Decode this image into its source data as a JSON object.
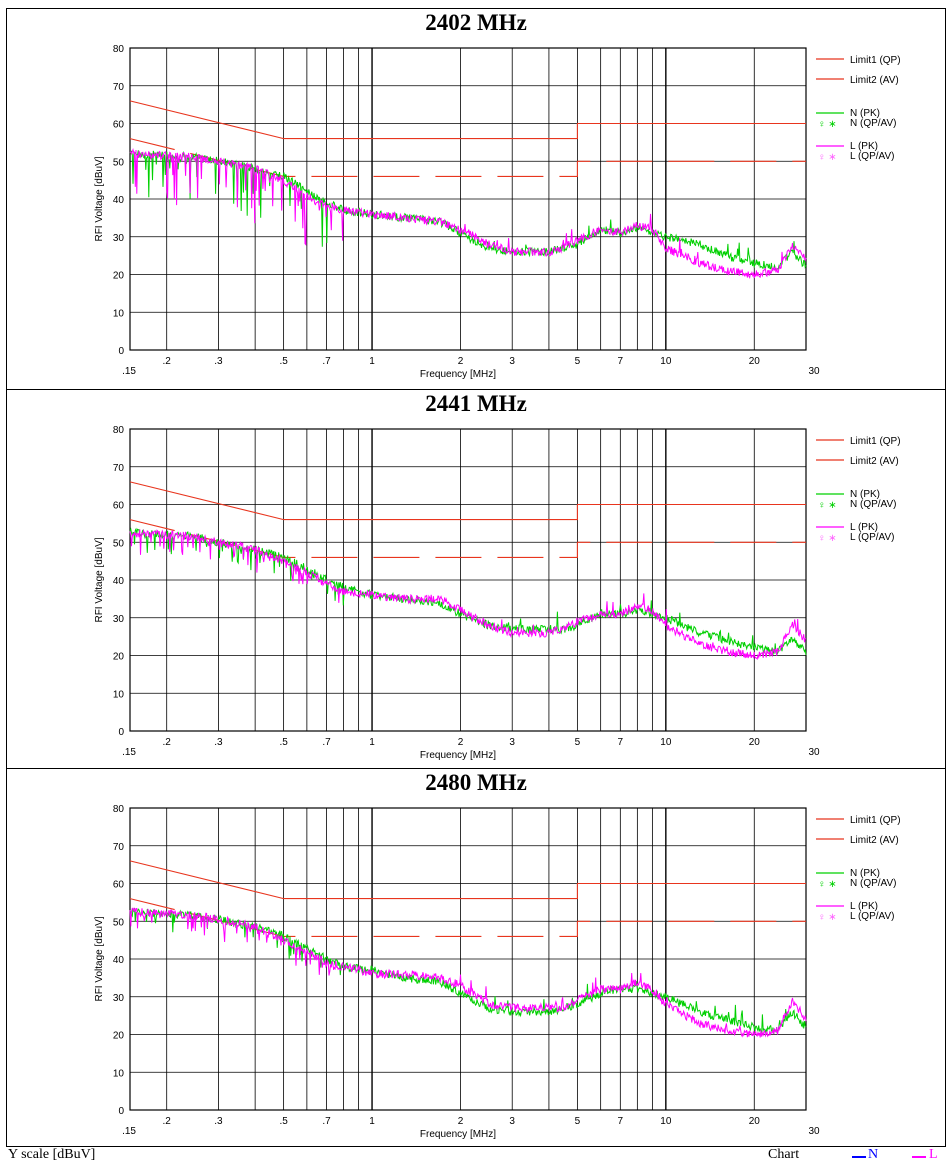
{
  "chart_data": [
    {
      "type": "line",
      "title": "2402 MHz",
      "xlabel": "Frequency [MHz]",
      "ylabel": "RFI Voltage [dBuV]",
      "x_scale": "log",
      "xlim": [
        0.15,
        30
      ],
      "ylim": [
        0,
        80
      ],
      "x_ticks": [
        ".15",
        ".2",
        ".3",
        ".5",
        ".7",
        "1",
        "2",
        "3",
        "5",
        "7",
        "10",
        "20",
        "30"
      ],
      "y_ticks": [
        "0",
        "10",
        "20",
        "30",
        "40",
        "50",
        "60",
        "70",
        "80"
      ],
      "grid": true,
      "legend_position": "right",
      "limits": [
        {
          "name": "Limit1 (QP)",
          "color": "#e8351e",
          "points": [
            [
              0.15,
              66
            ],
            [
              0.5,
              56
            ],
            [
              5,
              56
            ],
            [
              5,
              60
            ],
            [
              30,
              60
            ]
          ]
        },
        {
          "name": "Limit2 (AV)",
          "color": "#e8351e",
          "points": [
            [
              0.15,
              56
            ],
            [
              0.5,
              46
            ],
            [
              5,
              46
            ],
            [
              5,
              50
            ],
            [
              30,
              50
            ]
          ]
        }
      ],
      "series": [
        {
          "name": "N (PK)",
          "color": "#00d000",
          "x": [
            0.15,
            0.2,
            0.25,
            0.3,
            0.4,
            0.5,
            0.6,
            0.7,
            0.8,
            1.0,
            1.3,
            1.7,
            2.0,
            2.5,
            3.0,
            3.5,
            4.0,
            4.5,
            5.0,
            6.0,
            7.0,
            8.0,
            9.0,
            10.0,
            13.0,
            16.0,
            20.0,
            24.0,
            27.0,
            30.0
          ],
          "y": [
            52,
            51.5,
            51,
            50,
            48,
            46,
            42,
            39,
            37,
            36,
            35,
            34,
            31,
            27,
            26,
            26,
            26,
            27,
            28,
            32,
            31,
            32,
            31,
            30,
            28,
            25,
            23,
            22,
            26,
            22
          ]
        },
        {
          "name": "L (PK)",
          "color": "#ff00ff",
          "x": [
            0.15,
            0.2,
            0.25,
            0.3,
            0.4,
            0.5,
            0.6,
            0.7,
            0.8,
            1.0,
            1.3,
            1.7,
            2.0,
            2.5,
            3.0,
            3.5,
            4.0,
            4.5,
            5.0,
            6.0,
            7.0,
            8.0,
            9.0,
            10.0,
            13.0,
            16.0,
            20.0,
            24.0,
            27.0,
            30.0
          ],
          "y": [
            52,
            51.5,
            51,
            50,
            48,
            45,
            41,
            38,
            37,
            36,
            35,
            34,
            32,
            28,
            26,
            26,
            26,
            27,
            29,
            32,
            31,
            33,
            32,
            27,
            23,
            21,
            20,
            21,
            28,
            24
          ]
        }
      ],
      "legend": {
        "limit1": "Limit1 (QP)",
        "limit2": "Limit2 (AV)",
        "n_pk": "N (PK)",
        "n_qpav": "N (QP/AV)",
        "l_pk": "L (PK)",
        "l_qpav": "L (QP/AV)"
      }
    },
    {
      "type": "line",
      "title": "2441 MHz",
      "xlabel": "Frequency [MHz]",
      "ylabel": "RFI Voltage [dBuV]",
      "x_scale": "log",
      "xlim": [
        0.15,
        30
      ],
      "ylim": [
        0,
        80
      ],
      "x_ticks": [
        ".15",
        ".2",
        ".3",
        ".5",
        ".7",
        "1",
        "2",
        "3",
        "5",
        "7",
        "10",
        "20",
        "30"
      ],
      "y_ticks": [
        "0",
        "10",
        "20",
        "30",
        "40",
        "50",
        "60",
        "70",
        "80"
      ],
      "grid": true,
      "legend_position": "right",
      "limits": [
        {
          "name": "Limit1 (QP)",
          "color": "#e8351e",
          "points": [
            [
              0.15,
              66
            ],
            [
              0.5,
              56
            ],
            [
              5,
              56
            ],
            [
              5,
              60
            ],
            [
              30,
              60
            ]
          ]
        },
        {
          "name": "Limit2 (AV)",
          "color": "#e8351e",
          "points": [
            [
              0.15,
              56
            ],
            [
              0.5,
              46
            ],
            [
              5,
              46
            ],
            [
              5,
              50
            ],
            [
              30,
              50
            ]
          ]
        }
      ],
      "series": [
        {
          "name": "N (PK)",
          "color": "#00d000",
          "x": [
            0.15,
            0.2,
            0.25,
            0.3,
            0.4,
            0.5,
            0.6,
            0.7,
            0.8,
            1.0,
            1.3,
            1.7,
            2.0,
            2.5,
            3.0,
            3.5,
            4.0,
            4.5,
            5.0,
            6.0,
            7.0,
            8.0,
            9.0,
            10.0,
            13.0,
            16.0,
            20.0,
            24.0,
            27.0,
            30.0
          ],
          "y": [
            52.5,
            52,
            51.5,
            50,
            48,
            46,
            43,
            40,
            38,
            36,
            35,
            34,
            31,
            28,
            27,
            27,
            27,
            27,
            28,
            31,
            31,
            32,
            31,
            30,
            26,
            24,
            22,
            21,
            24,
            21
          ]
        },
        {
          "name": "L (PK)",
          "color": "#ff00ff",
          "x": [
            0.15,
            0.2,
            0.25,
            0.3,
            0.4,
            0.5,
            0.6,
            0.7,
            0.8,
            1.0,
            1.3,
            1.7,
            2.0,
            2.5,
            3.0,
            3.5,
            4.0,
            4.5,
            5.0,
            6.0,
            7.0,
            8.0,
            9.0,
            10.0,
            13.0,
            16.0,
            20.0,
            24.0,
            27.0,
            30.0
          ],
          "y": [
            52.5,
            52,
            51.5,
            50,
            48,
            45,
            42,
            39,
            37,
            36,
            35,
            35,
            32,
            28,
            26,
            26,
            26,
            27,
            29,
            31,
            31,
            33,
            32,
            28,
            23,
            21,
            20,
            21,
            28,
            24
          ]
        }
      ],
      "legend": {
        "limit1": "Limit1 (QP)",
        "limit2": "Limit2 (AV)",
        "n_pk": "N (PK)",
        "n_qpav": "N (QP/AV)",
        "l_pk": "L (PK)",
        "l_qpav": "L (QP/AV)"
      }
    },
    {
      "type": "line",
      "title": "2480 MHz",
      "xlabel": "Frequency [MHz]",
      "ylabel": "RFI Voltage [dBuV]",
      "x_scale": "log",
      "xlim": [
        0.15,
        30
      ],
      "ylim": [
        0,
        80
      ],
      "x_ticks": [
        ".15",
        ".2",
        ".3",
        ".5",
        ".7",
        "1",
        "2",
        "3",
        "5",
        "7",
        "10",
        "20",
        "30"
      ],
      "y_ticks": [
        "0",
        "10",
        "20",
        "30",
        "40",
        "50",
        "60",
        "70",
        "80"
      ],
      "grid": true,
      "legend_position": "right",
      "limits": [
        {
          "name": "Limit1 (QP)",
          "color": "#e8351e",
          "points": [
            [
              0.15,
              66
            ],
            [
              0.5,
              56
            ],
            [
              5,
              56
            ],
            [
              5,
              60
            ],
            [
              30,
              60
            ]
          ]
        },
        {
          "name": "Limit2 (AV)",
          "color": "#e8351e",
          "points": [
            [
              0.15,
              56
            ],
            [
              0.5,
              46
            ],
            [
              5,
              46
            ],
            [
              5,
              50
            ],
            [
              30,
              50
            ]
          ]
        }
      ],
      "series": [
        {
          "name": "N (PK)",
          "color": "#00d000",
          "x": [
            0.15,
            0.2,
            0.25,
            0.3,
            0.4,
            0.5,
            0.6,
            0.7,
            0.8,
            1.0,
            1.3,
            1.7,
            2.0,
            2.5,
            3.0,
            3.5,
            4.0,
            4.5,
            5.0,
            6.0,
            7.0,
            8.0,
            9.0,
            10.0,
            13.0,
            16.0,
            20.0,
            24.0,
            27.0,
            30.0
          ],
          "y": [
            52.5,
            52,
            51.5,
            50.5,
            48.5,
            46,
            43,
            40,
            38,
            37,
            35,
            34,
            31,
            27,
            26,
            26,
            26,
            27,
            28,
            31,
            32,
            32,
            31,
            30,
            26,
            24,
            22,
            21,
            26,
            22
          ]
        },
        {
          "name": "L (PK)",
          "color": "#ff00ff",
          "x": [
            0.15,
            0.2,
            0.25,
            0.3,
            0.4,
            0.5,
            0.6,
            0.7,
            0.8,
            1.0,
            1.3,
            1.7,
            2.0,
            2.5,
            3.0,
            3.5,
            4.0,
            4.5,
            5.0,
            6.0,
            7.0,
            8.0,
            9.0,
            10.0,
            13.0,
            16.0,
            20.0,
            24.0,
            27.0,
            30.0
          ],
          "y": [
            52.5,
            52,
            51.5,
            50.5,
            48.5,
            45,
            42,
            39,
            38,
            36,
            36,
            35,
            33,
            28,
            27,
            27,
            27,
            27,
            29,
            32,
            32,
            34,
            32,
            28,
            23,
            21,
            20,
            21,
            29,
            24
          ]
        }
      ],
      "legend": {
        "limit1": "Limit1 (QP)",
        "limit2": "Limit2 (AV)",
        "n_pk": "N (PK)",
        "n_qpav": "N (QP/AV)",
        "l_pk": "L (PK)",
        "l_qpav": "L (QP/AV)"
      }
    }
  ],
  "footer": {
    "y_scale": "Y scale [dBuV]",
    "chart_label": "Chart",
    "legend_n": "N",
    "legend_l": "L",
    "color_n": "#0000ff",
    "color_l": "#ff00ff"
  }
}
